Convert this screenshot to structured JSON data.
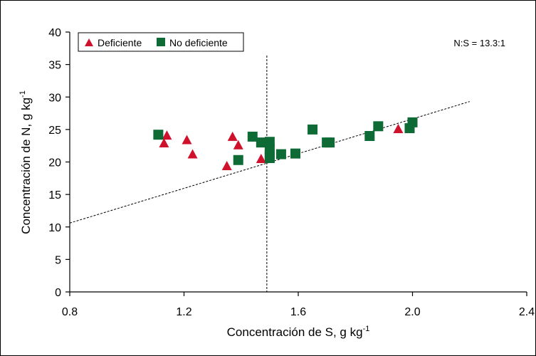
{
  "chart_data": {
    "type": "scatter",
    "annotation": "N:S = 13.3:1",
    "xlabel": {
      "main": "Concentración de S, g kg",
      "sup": "-1"
    },
    "ylabel": {
      "main": "Concentración de N, g kg",
      "sup": "-1"
    },
    "xlim": [
      0.8,
      2.4
    ],
    "ylim": [
      0,
      40
    ],
    "xticks": [
      "0.8",
      "1.2",
      "1.6",
      "2.0",
      "2.4"
    ],
    "yticks": [
      "0",
      "5",
      "10",
      "15",
      "20",
      "25",
      "30",
      "35",
      "40"
    ],
    "grid": false,
    "legend_position": "top-left",
    "series": [
      {
        "name": "Deficiente",
        "marker": "triangle",
        "color": "#d0112b",
        "points": [
          [
            1.14,
            24.1
          ],
          [
            1.13,
            22.9
          ],
          [
            1.21,
            23.4
          ],
          [
            1.23,
            21.2
          ],
          [
            1.35,
            19.4
          ],
          [
            1.37,
            23.9
          ],
          [
            1.39,
            22.6
          ],
          [
            1.47,
            20.5
          ],
          [
            1.95,
            25.1
          ]
        ]
      },
      {
        "name": "No deficiente",
        "marker": "square",
        "color": "#0e6b35",
        "points": [
          [
            1.11,
            24.2
          ],
          [
            1.39,
            20.3
          ],
          [
            1.44,
            23.9
          ],
          [
            1.47,
            23.0
          ],
          [
            1.5,
            23.1
          ],
          [
            1.5,
            22.0
          ],
          [
            1.5,
            21.1
          ],
          [
            1.5,
            20.6
          ],
          [
            1.54,
            21.2
          ],
          [
            1.59,
            21.3
          ],
          [
            1.65,
            25.0
          ],
          [
            1.7,
            23.0
          ],
          [
            1.71,
            23.0
          ],
          [
            1.85,
            24.0
          ],
          [
            1.88,
            25.5
          ],
          [
            1.99,
            25.2
          ],
          [
            2.0,
            26.1
          ]
        ]
      }
    ],
    "trend_line": {
      "x": [
        0.8,
        2.2
      ],
      "y": [
        10.6,
        29.3
      ]
    },
    "vertical_line_x": 1.49
  }
}
